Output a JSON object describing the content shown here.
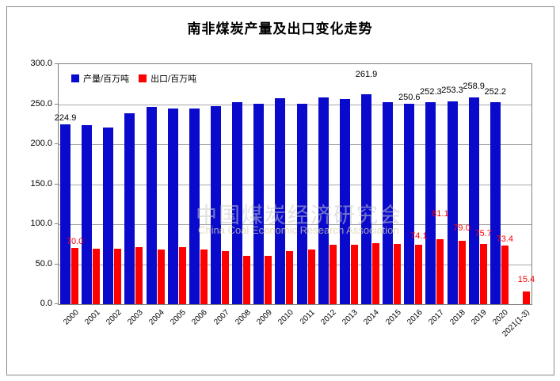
{
  "title": "南非煤炭产量及出口变化走势",
  "watermark": {
    "line1": "中国煤炭经济研究会",
    "line2": "China Coal Economic Research Association"
  },
  "legend": [
    {
      "label": "产量/百万吨",
      "color": "#0a0acd"
    },
    {
      "label": "出口/百万吨",
      "color": "#ff0000"
    }
  ],
  "colors": {
    "production": "#0a0acd",
    "export": "#ff0000",
    "grid": "#a6a6a6",
    "axis": "#808080",
    "label_black": "#000000",
    "label_red": "#ff0000"
  },
  "chart_data": {
    "type": "bar",
    "title": "南非煤炭产量及出口变化走势",
    "xlabel": "",
    "ylabel": "",
    "ylim": [
      0,
      300
    ],
    "ytick_step": 50,
    "yticks": [
      "300.0",
      "250.0",
      "200.0",
      "150.0",
      "100.0",
      "50.0",
      "0.0"
    ],
    "grid": true,
    "legend_position": "top-left",
    "categories": [
      "2000",
      "2001",
      "2002",
      "2003",
      "2004",
      "2005",
      "2006",
      "2007",
      "2008",
      "2009",
      "2010",
      "2011",
      "2012",
      "2013",
      "2014",
      "2015",
      "2016",
      "2017",
      "2018",
      "2019",
      "2020",
      "2021(1-3)"
    ],
    "series": [
      {
        "name": "产量/百万吨",
        "color": "#0a0acd",
        "values": [
          224.9,
          223.5,
          220.9,
          238.8,
          246.6,
          244.4,
          244.8,
          247.7,
          252.6,
          250.6,
          257.2,
          250.9,
          258.6,
          256.3,
          261.9,
          252.1,
          250.6,
          252.3,
          253.3,
          258.9,
          252.2,
          null
        ],
        "labels": [
          "224.9",
          null,
          null,
          null,
          null,
          null,
          null,
          null,
          null,
          null,
          null,
          null,
          null,
          null,
          "261.9",
          null,
          "250.6",
          "252.3",
          "253.3",
          "258.9",
          "252.2",
          null
        ]
      },
      {
        "name": "出口/百万吨",
        "color": "#ff0000",
        "values": [
          70.0,
          69.2,
          69.1,
          71.5,
          67.9,
          70.9,
          68.8,
          66.4,
          60.6,
          60.4,
          66.8,
          68.5,
          74.0,
          74.6,
          75.8,
          75.5,
          74.1,
          81.1,
          79.0,
          75.7,
          73.4,
          15.4
        ],
        "labels": [
          "70.0",
          null,
          null,
          null,
          null,
          null,
          null,
          null,
          null,
          null,
          null,
          null,
          null,
          null,
          null,
          null,
          "74.1",
          "81.1",
          "79.0",
          "75.7",
          "73.4",
          "15.4"
        ]
      }
    ]
  }
}
